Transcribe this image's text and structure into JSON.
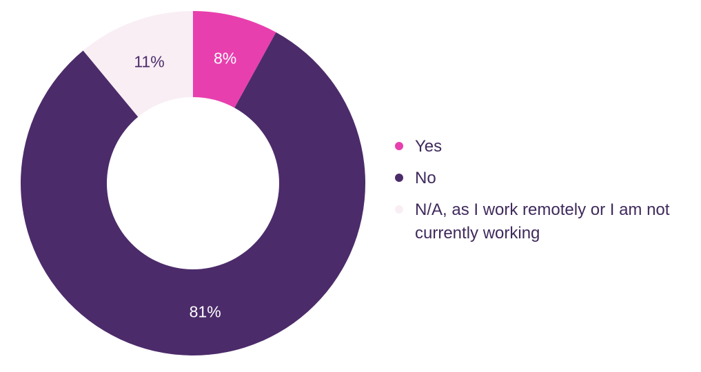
{
  "chart_data": {
    "type": "pie",
    "donut": true,
    "legend_position": "right",
    "categories": [
      "Yes",
      "No",
      "N/A, as I work remotely or I am not currently working"
    ],
    "values": [
      8,
      81,
      11
    ],
    "labels": [
      "8%",
      "81%",
      "11%"
    ],
    "colors": [
      "#e83fae",
      "#4c2b6a",
      "#f8eef4"
    ],
    "label_colors": [
      "#ffffff",
      "#ffffff",
      "#4c2b6a"
    ]
  }
}
